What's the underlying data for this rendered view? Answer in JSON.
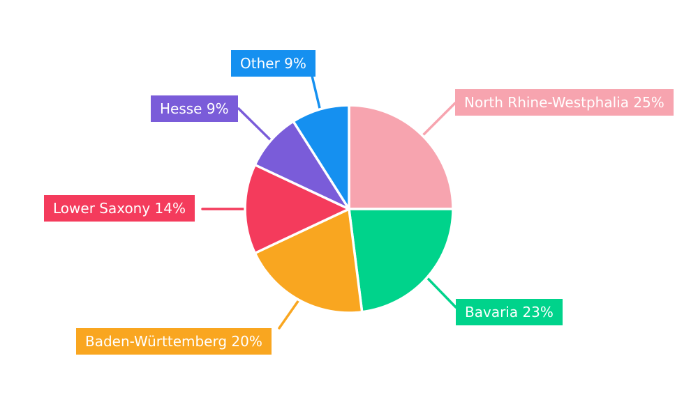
{
  "chart_data": {
    "type": "pie",
    "title": "",
    "unit": "%",
    "direction": "clockwise",
    "start_angle_deg": -90,
    "background": "#FFFFFF",
    "label_text_color": "#FFFFFF",
    "slices": [
      {
        "label": "North Rhine-Westphalia",
        "value": 25,
        "color": "#F7A4AF",
        "display": "North Rhine-Westphalia 25%"
      },
      {
        "label": "Bavaria",
        "value": 23,
        "color": "#00D38B",
        "display": "Bavaria 23%"
      },
      {
        "label": "Baden-Württemberg",
        "value": 20,
        "color": "#F9A620",
        "display": "Baden-Württemberg 20%"
      },
      {
        "label": "Lower Saxony",
        "value": 14,
        "color": "#F43B5C",
        "display": "Lower Saxony 14%"
      },
      {
        "label": "Hesse",
        "value": 9,
        "color": "#7A5CD9",
        "display": "Hesse 9%"
      },
      {
        "label": "Other",
        "value": 9,
        "color": "#1590F0",
        "display": "Other 9%"
      }
    ]
  }
}
